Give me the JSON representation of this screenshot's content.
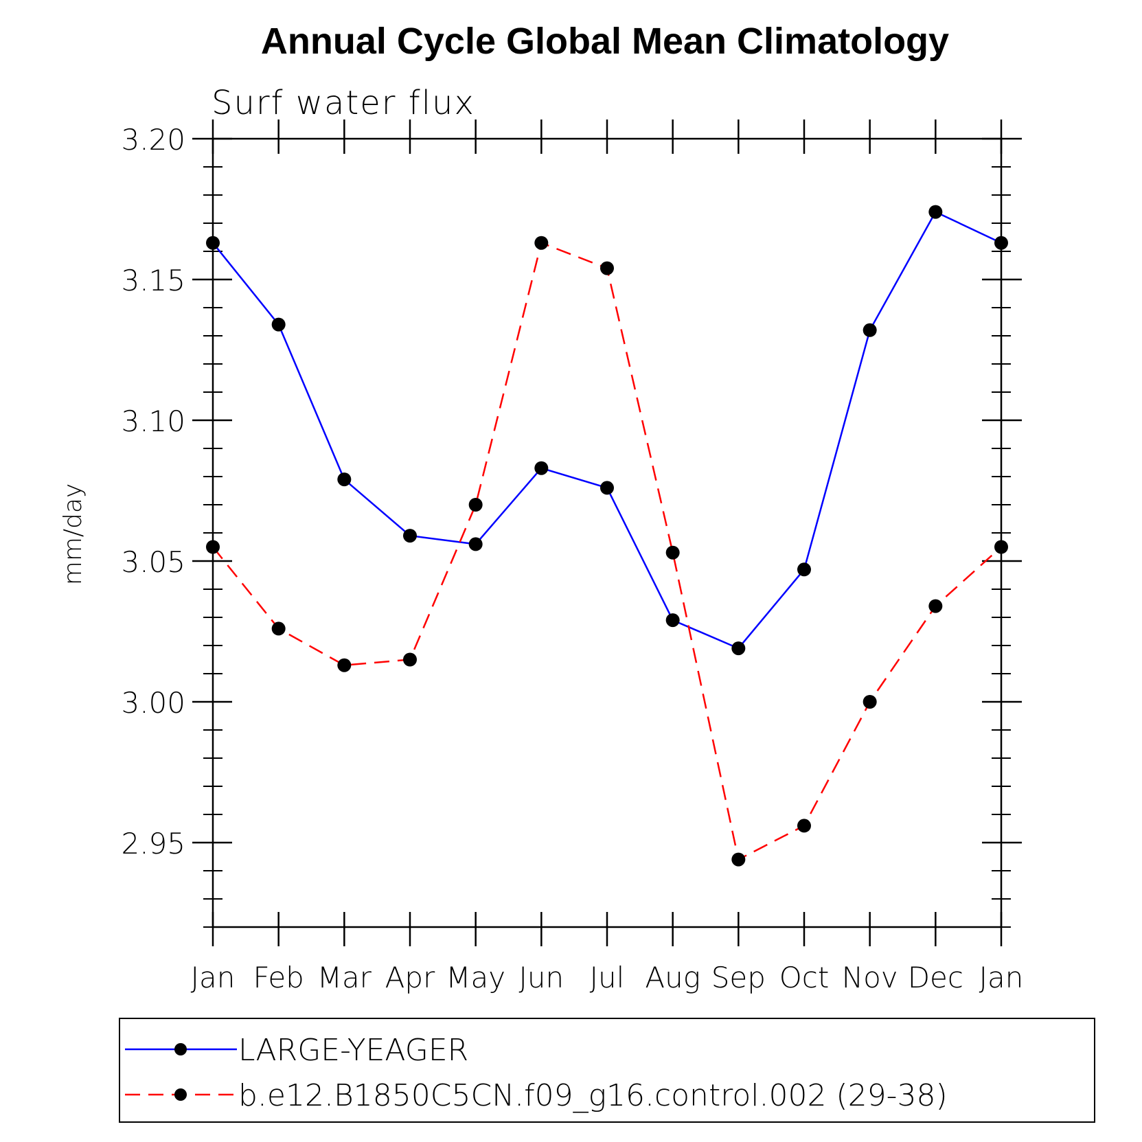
{
  "chart_data": {
    "type": "line",
    "title": "Annual Cycle Global Mean Climatology",
    "subtitle": "Surf water flux",
    "xlabel": "",
    "ylabel": "mm/day",
    "categories": [
      "Jan",
      "Feb",
      "Mar",
      "Apr",
      "May",
      "Jun",
      "Jul",
      "Aug",
      "Sep",
      "Oct",
      "Nov",
      "Dec",
      "Jan"
    ],
    "ylim": [
      2.92,
      3.2
    ],
    "yticks": [
      "2.95",
      "3.00",
      "3.05",
      "3.10",
      "3.15",
      "3.20"
    ],
    "grid": false,
    "legend_position": "bottom",
    "series": [
      {
        "name": "LARGE-YEAGER",
        "color": "#0000ff",
        "dash": "solid",
        "marker": "circle",
        "values": [
          3.163,
          3.134,
          3.079,
          3.059,
          3.056,
          3.083,
          3.076,
          3.029,
          3.019,
          3.047,
          3.132,
          3.174,
          3.163
        ]
      },
      {
        "name": "b.e12.B1850C5CN.f09_g16.control.002 (29-38)",
        "color": "#ff0000",
        "dash": "dashed",
        "marker": "circle",
        "values": [
          3.055,
          3.026,
          3.013,
          3.015,
          3.07,
          3.163,
          3.154,
          3.053,
          2.944,
          2.956,
          3.0,
          3.034,
          3.055
        ]
      }
    ]
  }
}
